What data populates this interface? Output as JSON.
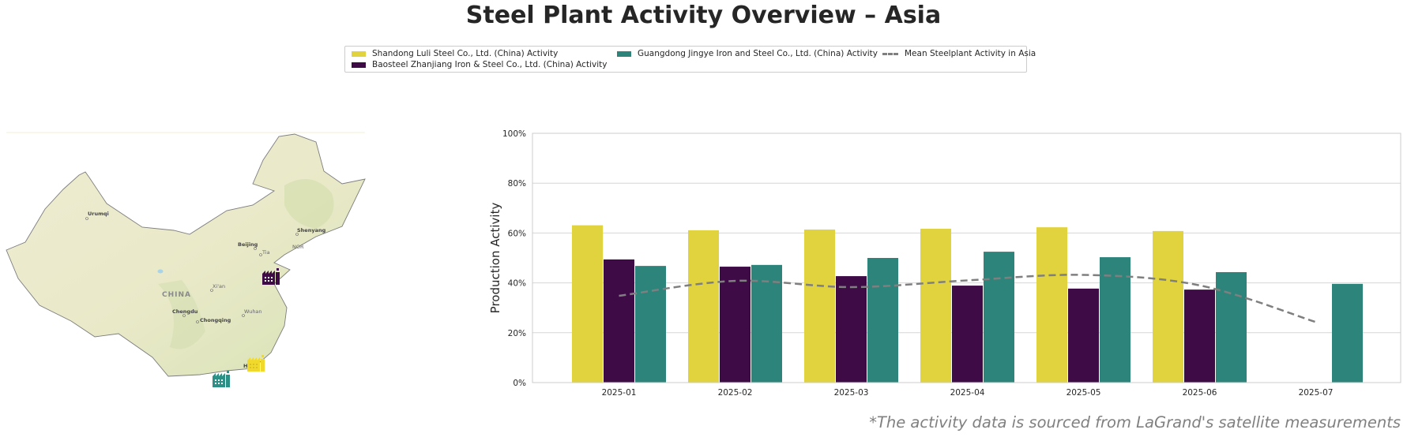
{
  "title": "Steel Plant Activity Overview – Asia",
  "legend": {
    "items": [
      {
        "label": "Shandong Luli Steel Co., Ltd. (China) Activity",
        "color": "#e0d33d",
        "kind": "bar"
      },
      {
        "label": "Baosteel Zhanjiang Iron & Steel Co., Ltd. (China) Activity",
        "color": "#3e0b47",
        "kind": "bar"
      },
      {
        "label": "Guangdong Jingye Iron and Steel Co., Ltd. (China) Activity",
        "color": "#2d847b",
        "kind": "bar"
      },
      {
        "label": "Mean Steelplant Activity in Asia",
        "color": "#7f7f7f",
        "kind": "dashed-line"
      }
    ]
  },
  "map": {
    "country_label": "CHINA",
    "cities": [
      "Urumqi",
      "Beijing",
      "Shenyang",
      "Xi'an",
      "Chengdu",
      "Chongqing",
      "Wuhan",
      "Tia",
      "NOR",
      "H"
    ],
    "plant_markers": [
      {
        "plant": "Baosteel Zhanjiang Iron & Steel Co., Ltd.",
        "color": "#3e0b47",
        "icon": "factory-icon"
      },
      {
        "plant": "Shandong Luli Steel Co., Ltd.",
        "color": "#e0d33d",
        "icon": "factory-icon"
      },
      {
        "plant": "Guangdong Jingye Iron and Steel Co., Ltd.",
        "color": "#2d847b",
        "icon": "factory-icon"
      }
    ]
  },
  "chart_data": {
    "type": "bar",
    "title": "Steel Plant Activity Overview – Asia",
    "xlabel": "",
    "ylabel": "Production Activity",
    "ylim": [
      0,
      100
    ],
    "yticks": [
      "0%",
      "20%",
      "40%",
      "60%",
      "80%",
      "100%"
    ],
    "ytick_values": [
      0,
      20,
      40,
      60,
      80,
      100
    ],
    "grid": "horizontal",
    "legend_position": "top-center",
    "categories": [
      "2025-01",
      "2025-02",
      "2025-03",
      "2025-04",
      "2025-05",
      "2025-06",
      "2025-07"
    ],
    "series": [
      {
        "name": "Shandong Luli Steel Co., Ltd. (China) Activity",
        "color": "#e0d33d",
        "values": [
          63.1,
          61.1,
          61.4,
          61.7,
          62.3,
          60.8,
          null
        ]
      },
      {
        "name": "Baosteel Zhanjiang Iron & Steel Co., Ltd. (China) Activity",
        "color": "#3e0b47",
        "values": [
          49.4,
          46.5,
          42.7,
          38.9,
          37.7,
          37.3,
          null
        ]
      },
      {
        "name": "Guangdong Jingye Iron and Steel Co., Ltd. (China) Activity",
        "color": "#2d847b",
        "values": [
          46.8,
          47.2,
          50.0,
          52.5,
          50.3,
          44.3,
          39.6
        ]
      }
    ],
    "mean_line": {
      "name": "Mean Steelplant Activity in Asia",
      "style": "dashed",
      "color": "#7f7f7f",
      "values": [
        34.8,
        40.8,
        38.3,
        41.0,
        43.2,
        39.0,
        24.3
      ]
    }
  },
  "footnote": "*The activity data is sourced from LaGrand's satellite measurements"
}
